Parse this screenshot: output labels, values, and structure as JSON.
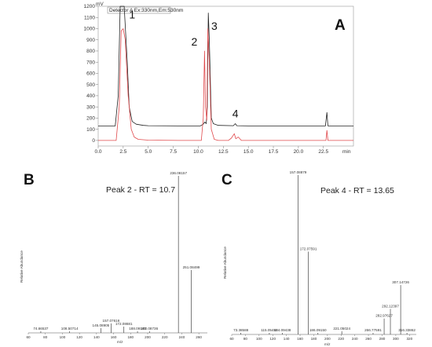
{
  "chart_data": [
    {
      "type": "line",
      "panel_label": "A",
      "unit_y": "mV",
      "unit_x": "min",
      "legend": "Detector A Ex:330nm,Em:530nm",
      "xlim": [
        0,
        25.5
      ],
      "ylim": [
        -50,
        1200
      ],
      "x_ticks": [
        "0.0",
        "2.5",
        "5.0",
        "7.5",
        "10.0",
        "12.5",
        "15.0",
        "17.5",
        "20.0",
        "22.5"
      ],
      "y_ticks": [
        "0",
        "100",
        "200",
        "300",
        "400",
        "500",
        "600",
        "700",
        "800",
        "900",
        "1000",
        "1100",
        "1200"
      ],
      "series": [
        {
          "color": "#222222",
          "points": [
            [
              0,
              130
            ],
            [
              1.7,
              130
            ],
            [
              2.0,
              400
            ],
            [
              2.2,
              1200
            ],
            [
              2.6,
              1200
            ],
            [
              2.9,
              700
            ],
            [
              3.1,
              300
            ],
            [
              3.4,
              170
            ],
            [
              3.8,
              145
            ],
            [
              4.5,
              135
            ],
            [
              5,
              132
            ],
            [
              8,
              130
            ],
            [
              10.2,
              130
            ],
            [
              10.5,
              145
            ],
            [
              10.65,
              165
            ],
            [
              10.8,
              150
            ],
            [
              10.9,
              300
            ],
            [
              11.0,
              1140
            ],
            [
              11.1,
              900
            ],
            [
              11.3,
              200
            ],
            [
              11.5,
              150
            ],
            [
              12,
              135
            ],
            [
              13.5,
              132
            ],
            [
              13.7,
              150
            ],
            [
              13.85,
              132
            ],
            [
              15,
              130
            ],
            [
              22.7,
              130
            ],
            [
              22.85,
              250
            ],
            [
              22.95,
              130
            ],
            [
              25.5,
              130
            ]
          ]
        },
        {
          "color": "#e0484b",
          "points": [
            [
              0,
              0
            ],
            [
              1.8,
              0
            ],
            [
              2.1,
              300
            ],
            [
              2.3,
              980
            ],
            [
              2.5,
              1000
            ],
            [
              2.7,
              900
            ],
            [
              3.0,
              400
            ],
            [
              3.3,
              100
            ],
            [
              3.6,
              30
            ],
            [
              4,
              10
            ],
            [
              5,
              3
            ],
            [
              8,
              0
            ],
            [
              10.3,
              0
            ],
            [
              10.5,
              200
            ],
            [
              10.62,
              800
            ],
            [
              10.72,
              300
            ],
            [
              10.85,
              180
            ],
            [
              10.95,
              1000
            ],
            [
              11.1,
              700
            ],
            [
              11.3,
              100
            ],
            [
              11.6,
              10
            ],
            [
              12,
              0
            ],
            [
              13.0,
              0
            ],
            [
              13.3,
              20
            ],
            [
              13.6,
              60
            ],
            [
              13.75,
              15
            ],
            [
              14.0,
              30
            ],
            [
              14.3,
              0
            ],
            [
              22.75,
              0
            ],
            [
              22.85,
              90
            ],
            [
              22.95,
              0
            ],
            [
              25.5,
              0
            ]
          ]
        }
      ],
      "annotations": [
        {
          "text": "1",
          "x": 3.4,
          "y": 1090
        },
        {
          "text": "2",
          "x": 9.6,
          "y": 850
        },
        {
          "text": "3",
          "x": 11.6,
          "y": 990
        },
        {
          "text": "4",
          "x": 13.7,
          "y": 205
        }
      ]
    },
    {
      "type": "bar",
      "panel_label": "B",
      "title": "Peak 2 - RT = 10.7",
      "xlabel": "m/z",
      "ylabel": "Relative Abundance",
      "xlim": [
        60,
        270
      ],
      "ylim": [
        0,
        100
      ],
      "x_ticks": [
        "60",
        "80",
        "100",
        "120",
        "140",
        "160",
        "180",
        "200",
        "220",
        "240",
        "260"
      ],
      "peaks": [
        {
          "mz": 74.66537,
          "rel": 1,
          "label": "74.66537"
        },
        {
          "mz": 108.50714,
          "rel": 1,
          "label": "108.50714"
        },
        {
          "mz": 145.08905,
          "rel": 3,
          "label": "145.08905"
        },
        {
          "mz": 157.07616,
          "rel": 6,
          "label": "157.07616"
        },
        {
          "mz": 172.08681,
          "rel": 4,
          "label": "172.08681"
        },
        {
          "mz": 188.0914,
          "rel": 1,
          "label": "188.09140"
        },
        {
          "mz": 202.08736,
          "rel": 1,
          "label": "202.08736"
        },
        {
          "mz": 236.08157,
          "rel": 100,
          "label": "236.08157"
        },
        {
          "mz": 251.08499,
          "rel": 40,
          "label": "251.08499"
        }
      ]
    },
    {
      "type": "bar",
      "panel_label": "C",
      "title": "Peak 4 - RT = 13.65",
      "xlabel": "m/z",
      "ylabel": "Relative Abundance",
      "xlim": [
        60,
        330
      ],
      "ylim": [
        0,
        100
      ],
      "x_ticks": [
        "60",
        "80",
        "100",
        "120",
        "140",
        "160",
        "180",
        "200",
        "220",
        "240",
        "260",
        "280",
        "300",
        "320"
      ],
      "peaks": [
        {
          "mz": 73.38588,
          "rel": 1,
          "label": "73.38588"
        },
        {
          "mz": 115.05488,
          "rel": 1,
          "label": "115.05488"
        },
        {
          "mz": 134.09438,
          "rel": 1,
          "label": "134.09438"
        },
        {
          "mz": 157.08879,
          "rel": 100,
          "label": "157.08879"
        },
        {
          "mz": 172.07591,
          "rel": 52,
          "label": "172.07591"
        },
        {
          "mz": 186.0915,
          "rel": 1,
          "label": "186.09150"
        },
        {
          "mz": 221.05024,
          "rel": 2,
          "label": "221.05024"
        },
        {
          "mz": 266.77591,
          "rel": 1,
          "label": "266.77591"
        },
        {
          "mz": 282.97627,
          "rel": 10,
          "label": "282.97627"
        },
        {
          "mz": 292.12397,
          "rel": 16,
          "label": "292.12397"
        },
        {
          "mz": 307.14726,
          "rel": 31,
          "label": "307.14726"
        },
        {
          "mz": 316.33862,
          "rel": 1,
          "label": "316.33862"
        }
      ]
    }
  ]
}
